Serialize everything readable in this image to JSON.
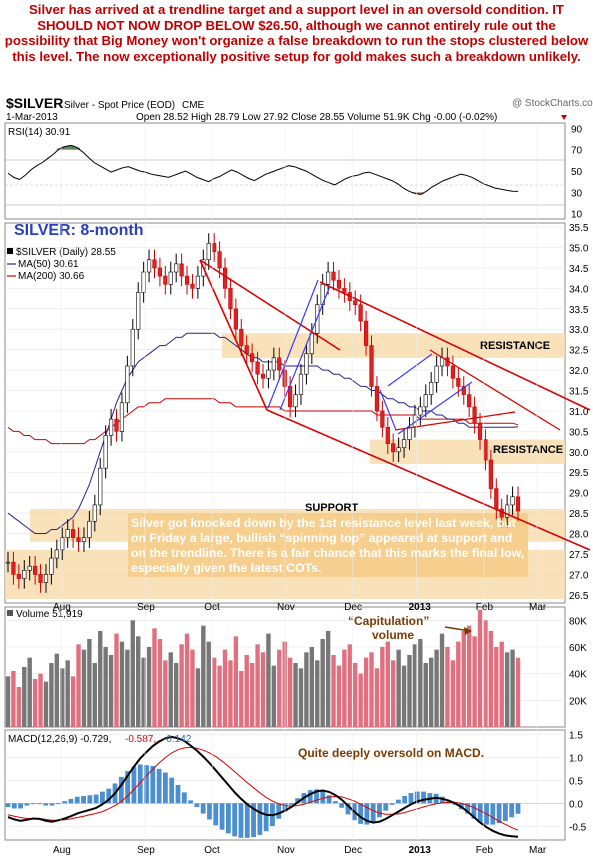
{
  "caption": "Silver has arrived at a trendline target and a support level in an oversold condition. IT SHOULD NOT NOW DROP BELOW $26.50, although we cannot entirely rule out the possibility that Big Money won't organize a false breakdown to run the stops clustered below this level. The now exceptionally positive setup for gold makes such a breakdown unlikely.",
  "header": {
    "symbol": "$SILVER",
    "description": "Silver - Spot Price (EOD)",
    "exchange": "CME",
    "watermark": "@ StockCharts.com",
    "date": "1-Mar-2013",
    "quote": "Open 28.52  High 28.79  Low 27.92  Close 28.55  Volume 51.9K  Chg -0.00 (-0.02%)"
  },
  "rsi": {
    "label": "RSI(14) 30.91",
    "ticks": [
      "90",
      "70",
      "50",
      "30",
      "10"
    ],
    "values": [
      48,
      44,
      42,
      46,
      51,
      55,
      58,
      62,
      66,
      71,
      73,
      74,
      72,
      68,
      63,
      58,
      55,
      52,
      49,
      51,
      53,
      54,
      52,
      50,
      49,
      47,
      46,
      45,
      44,
      46,
      48,
      50,
      47,
      44,
      42,
      40,
      43,
      45,
      48,
      51,
      49,
      46,
      43,
      41,
      44,
      47,
      49,
      51,
      53,
      55,
      54,
      52,
      50,
      47,
      44,
      41,
      39,
      37,
      40,
      43,
      45,
      46,
      48,
      49,
      47,
      45,
      43,
      41,
      38,
      34,
      31,
      29,
      28,
      31,
      35,
      38,
      41,
      43,
      45,
      47,
      46,
      44,
      41,
      38,
      36,
      34,
      33,
      32,
      31,
      30.9
    ]
  },
  "price": {
    "title": "SILVER: 8-month",
    "legend_price": "$SILVER (Daily) 28.55",
    "legend_ma50": "MA(50) 30.61",
    "legend_ma200": "MA(200) 30.66",
    "ticks": [
      "35.5",
      "35.0",
      "34.5",
      "34.0",
      "33.5",
      "33.0",
      "32.5",
      "32.0",
      "31.5",
      "31.0",
      "30.5",
      "30.0",
      "29.5",
      "29.0",
      "28.5",
      "28.0",
      "27.5",
      "27.0",
      "26.5"
    ],
    "label_resistance1": "RESISTANCE",
    "label_resistance2": "RESISTANCE",
    "label_support": "SUPPORT",
    "annotation": "Silver got knocked down by the 1st resistance level last week, but on Friday a large, bullish “spinning top” appeared at support and on the trendline. There is a fair chance that this marks the final low, especially given the latest COTs."
  },
  "volume": {
    "label": "Volume 51,919",
    "annotation_line1": "“Capitulation”",
    "annotation_line2": "volume",
    "ticks": [
      "80K",
      "60K",
      "40K",
      "20K"
    ]
  },
  "macd": {
    "label_name": "MACD(12,26,9) -0.729,",
    "label_signal": "-0.587,",
    "label_hist": "-0.142",
    "annotation": "Quite deeply oversold on MACD.",
    "ticks": [
      "1.5",
      "1.0",
      "0.5",
      "0.0",
      "-0.5"
    ]
  },
  "x_labels": [
    "Aug",
    "Sep",
    "Oct",
    "Nov",
    "Dec",
    "2013",
    "Feb",
    "Mar"
  ],
  "chart_data": {
    "type": "line",
    "title": "SILVER: 8-month",
    "x_labels": [
      "Aug",
      "Sep",
      "Oct",
      "Nov",
      "Dec",
      "2013",
      "Feb",
      "Mar"
    ],
    "price_close": [
      27.3,
      27.0,
      26.9,
      27.1,
      27.2,
      27.0,
      26.8,
      27.0,
      27.4,
      27.6,
      27.9,
      28.1,
      27.9,
      27.8,
      27.9,
      28.3,
      28.7,
      29.6,
      30.4,
      30.8,
      30.5,
      31.2,
      32.1,
      33.0,
      33.9,
      34.4,
      34.7,
      34.5,
      34.3,
      34.1,
      34.4,
      34.6,
      34.3,
      34.1,
      34.0,
      34.3,
      34.7,
      35.1,
      34.9,
      34.5,
      34.0,
      33.5,
      33.0,
      32.6,
      32.4,
      32.2,
      31.9,
      31.8,
      32.0,
      32.3,
      32.0,
      31.6,
      31.1,
      31.4,
      31.9,
      32.4,
      32.9,
      33.6,
      34.1,
      34.4,
      34.2,
      34.0,
      33.9,
      33.7,
      33.6,
      33.2,
      32.6,
      31.6,
      31.0,
      30.6,
      30.2,
      30.0,
      30.1,
      30.3,
      30.6,
      30.9,
      31.1,
      31.4,
      31.7,
      32.1,
      32.3,
      32.1,
      31.8,
      31.6,
      31.4,
      31.1,
      30.7,
      30.3,
      29.8,
      29.1,
      28.6,
      28.4,
      28.7,
      28.9,
      28.55
    ],
    "ma50": [
      28.5,
      28.4,
      28.3,
      28.2,
      28.1,
      28.0,
      28.0,
      28.0,
      28.1,
      28.1,
      28.2,
      28.3,
      28.4,
      28.6,
      28.9,
      29.2,
      29.6,
      30.0,
      30.4,
      30.8,
      31.2,
      31.5,
      31.8,
      32.0,
      32.2,
      32.3,
      32.4,
      32.5,
      32.6,
      32.6,
      32.7,
      32.8,
      32.8,
      32.9,
      32.9,
      32.9,
      32.9,
      32.9,
      32.9,
      32.8,
      32.8,
      32.7,
      32.6,
      32.5,
      32.4,
      32.3,
      32.3,
      32.2,
      32.2,
      32.2,
      32.2,
      32.1,
      32.1,
      32.1,
      32.1,
      32.1,
      32.1,
      32.1,
      32.0,
      32.0,
      31.9,
      31.9,
      31.8,
      31.8,
      31.7,
      31.6,
      31.6,
      31.5,
      31.5,
      31.4,
      31.3,
      31.3,
      31.2,
      31.2,
      31.1,
      31.1,
      31.0,
      31.0,
      31.0,
      30.9,
      30.9,
      30.8,
      30.8,
      30.7,
      30.7,
      30.6,
      30.6,
      30.6,
      30.6,
      30.6,
      30.6,
      30.6,
      30.6,
      30.6,
      30.61
    ],
    "ma200": [
      30.6,
      30.5,
      30.5,
      30.4,
      30.4,
      30.3,
      30.3,
      30.3,
      30.2,
      30.2,
      30.2,
      30.2,
      30.2,
      30.2,
      30.2,
      30.3,
      30.3,
      30.4,
      30.5,
      30.6,
      30.7,
      30.8,
      30.9,
      31.0,
      31.1,
      31.1,
      31.2,
      31.2,
      31.2,
      31.3,
      31.3,
      31.3,
      31.3,
      31.3,
      31.3,
      31.3,
      31.3,
      31.3,
      31.3,
      31.2,
      31.2,
      31.2,
      31.1,
      31.1,
      31.1,
      31.1,
      31.1,
      31.1,
      31.1,
      31.1,
      31.1,
      31.0,
      31.0,
      31.0,
      31.0,
      31.0,
      31.0,
      31.0,
      31.0,
      31.0,
      31.0,
      31.0,
      31.0,
      31.0,
      31.0,
      31.0,
      31.0,
      31.0,
      30.9,
      30.9,
      30.9,
      30.9,
      30.9,
      30.9,
      30.9,
      30.9,
      30.8,
      30.8,
      30.8,
      30.8,
      30.8,
      30.8,
      30.8,
      30.8,
      30.8,
      30.7,
      30.7,
      30.7,
      30.7,
      30.7,
      30.7,
      30.7,
      30.7,
      30.7,
      30.66
    ],
    "y_range": [
      26.3,
      35.6
    ],
    "support_band": [
      27.8,
      28.6
    ],
    "resistance_band_1": [
      32.3,
      32.9
    ],
    "resistance_band_2": [
      29.7,
      30.3
    ],
    "lower_band": [
      26.4,
      27.6
    ],
    "volume_k": [
      38,
      42,
      30,
      45,
      52,
      36,
      40,
      34,
      48,
      55,
      44,
      50,
      38,
      62,
      58,
      66,
      48,
      72,
      60,
      54,
      70,
      64,
      58,
      80,
      68,
      52,
      60,
      74,
      66,
      50,
      56,
      48,
      62,
      70,
      58,
      44,
      76,
      64,
      52,
      46,
      58,
      50,
      68,
      42,
      54,
      48,
      62,
      56,
      70,
      46,
      58,
      64,
      52,
      48,
      44,
      56,
      60,
      50,
      66,
      72,
      54,
      46,
      58,
      62,
      48,
      40,
      52,
      56,
      44,
      60,
      64,
      50,
      58,
      46,
      54,
      62,
      66,
      48,
      52,
      58,
      70,
      60,
      50,
      64,
      72,
      76,
      68,
      88,
      80,
      72,
      60,
      64,
      56,
      58,
      51.919
    ],
    "volume_range": [
      0,
      90
    ],
    "macd": [
      -0.3,
      -0.35,
      -0.38,
      -0.36,
      -0.33,
      -0.34,
      -0.38,
      -0.4,
      -0.37,
      -0.33,
      -0.28,
      -0.22,
      -0.18,
      -0.14,
      -0.1,
      -0.02,
      0.08,
      0.22,
      0.4,
      0.6,
      0.8,
      0.98,
      1.12,
      1.25,
      1.35,
      1.42,
      1.45,
      1.42,
      1.36,
      1.26,
      1.15,
      1.02,
      0.88,
      0.72,
      0.56,
      0.4,
      0.24,
      0.1,
      -0.02,
      -0.12,
      -0.2,
      -0.25,
      -0.26,
      -0.22,
      -0.16,
      -0.08,
      0.02,
      0.12,
      0.2,
      0.26,
      0.28,
      0.25,
      0.18,
      0.08,
      -0.05,
      -0.18,
      -0.3,
      -0.38,
      -0.42,
      -0.4,
      -0.34,
      -0.26,
      -0.18,
      -0.1,
      -0.02,
      0.04,
      0.08,
      0.1,
      0.12,
      0.1,
      0.06,
      0.0,
      -0.08,
      -0.18,
      -0.3,
      -0.42,
      -0.52,
      -0.6,
      -0.66,
      -0.7,
      -0.72,
      -0.729
    ],
    "macd_signal": [
      -0.25,
      -0.28,
      -0.31,
      -0.33,
      -0.33,
      -0.33,
      -0.35,
      -0.37,
      -0.37,
      -0.36,
      -0.34,
      -0.31,
      -0.28,
      -0.25,
      -0.22,
      -0.18,
      -0.12,
      -0.05,
      0.04,
      0.16,
      0.3,
      0.45,
      0.6,
      0.74,
      0.88,
      1.0,
      1.1,
      1.17,
      1.21,
      1.22,
      1.2,
      1.16,
      1.1,
      1.02,
      0.92,
      0.81,
      0.69,
      0.57,
      0.45,
      0.34,
      0.23,
      0.13,
      0.05,
      -0.01,
      -0.05,
      -0.06,
      -0.05,
      -0.02,
      0.02,
      0.07,
      0.11,
      0.14,
      0.15,
      0.14,
      0.1,
      0.05,
      -0.02,
      -0.09,
      -0.16,
      -0.21,
      -0.24,
      -0.24,
      -0.23,
      -0.2,
      -0.16,
      -0.12,
      -0.08,
      -0.04,
      -0.01,
      0.01,
      0.02,
      0.02,
      0.0,
      -0.04,
      -0.09,
      -0.16,
      -0.23,
      -0.31,
      -0.39,
      -0.46,
      -0.53,
      -0.587
    ],
    "macd_range": [
      -0.8,
      1.6
    ]
  }
}
